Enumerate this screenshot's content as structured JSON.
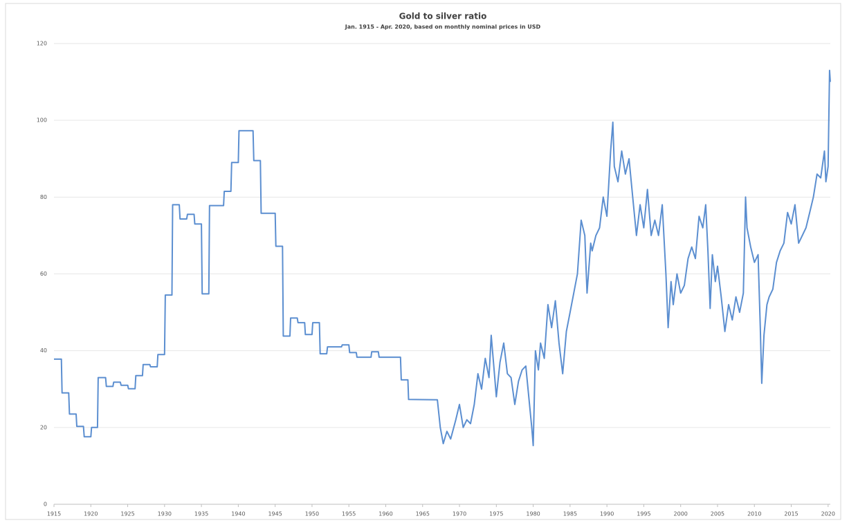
{
  "chart_data": {
    "type": "line",
    "title": "Gold to silver ratio",
    "subtitle": "Jan. 1915 - Apr. 2020, based on monthly nominal prices in USD",
    "color": "#5b8ed0",
    "grid": true,
    "xlim": [
      1915,
      2020.3
    ],
    "ylim": [
      0,
      120
    ],
    "xticks": [
      1915,
      1920,
      1925,
      1930,
      1935,
      1940,
      1945,
      1950,
      1955,
      1960,
      1965,
      1970,
      1975,
      1980,
      1985,
      1990,
      1995,
      2000,
      2005,
      2010,
      2015,
      2020
    ],
    "yticks": [
      0,
      20,
      40,
      60,
      80,
      100,
      120
    ],
    "x": [
      1915,
      1916,
      1916.1,
      1917,
      1917.1,
      1918,
      1918.1,
      1919,
      1919.1,
      1920,
      1920.1,
      1920.9,
      1921,
      1922,
      1922.1,
      1923,
      1923.1,
      1924,
      1924.1,
      1925,
      1925.1,
      1926,
      1926.1,
      1927,
      1927.1,
      1928,
      1928.1,
      1929,
      1929.1,
      1930,
      1930.1,
      1931,
      1931.1,
      1932,
      1932.1,
      1933,
      1933.1,
      1934,
      1934.1,
      1935,
      1935.1,
      1936,
      1936.1,
      1938,
      1938.1,
      1939,
      1939.1,
      1940,
      1940.1,
      1942,
      1942.1,
      1943,
      1943.1,
      1945,
      1945.1,
      1946,
      1946.1,
      1947,
      1947.1,
      1948,
      1948.1,
      1949,
      1949.1,
      1950,
      1950.1,
      1951,
      1951.1,
      1952,
      1952.1,
      1954,
      1954.1,
      1955,
      1955.1,
      1956,
      1956.1,
      1958,
      1958.1,
      1959,
      1959.1,
      1962,
      1962.1,
      1963,
      1963.1,
      1967,
      1967.4,
      1967.8,
      1968.3,
      1968.8,
      1969.5,
      1970,
      1970.5,
      1971,
      1971.5,
      1972,
      1972.5,
      1973,
      1973.5,
      1974,
      1974.3,
      1974.7,
      1975,
      1975.5,
      1976,
      1976.5,
      1977,
      1977.5,
      1978,
      1978.5,
      1979,
      1979.4,
      1979.8,
      1980,
      1980.3,
      1980.7,
      1981,
      1981.5,
      1982,
      1982.5,
      1983,
      1983.5,
      1984,
      1984.5,
      1985,
      1985.5,
      1986,
      1986.5,
      1987,
      1987.3,
      1987.8,
      1988,
      1988.5,
      1989,
      1989.5,
      1990,
      1990.5,
      1990.8,
      1991,
      1991.5,
      1992,
      1992.5,
      1993,
      1993.5,
      1994,
      1994.5,
      1995,
      1995.5,
      1996,
      1996.5,
      1997,
      1997.5,
      1998,
      1998.3,
      1998.7,
      1999,
      1999.5,
      2000,
      2000.5,
      2001,
      2001.5,
      2002,
      2002.5,
      2003,
      2003.4,
      2003.7,
      2004,
      2004.3,
      2004.7,
      2005,
      2005.5,
      2006,
      2006.5,
      2007,
      2007.5,
      2008,
      2008.5,
      2008.8,
      2009,
      2009.5,
      2010,
      2010.5,
      2010.8,
      2011,
      2011.3,
      2011.7,
      2012,
      2012.5,
      2013,
      2013.5,
      2014,
      2014.5,
      2015,
      2015.5,
      2016,
      2016.5,
      2017,
      2017.5,
      2018,
      2018.5,
      2019,
      2019.5,
      2019.7,
      2020,
      2020.2,
      2020.3
    ],
    "values": [
      37.8,
      37.8,
      29,
      29,
      23.5,
      23.5,
      20.3,
      20.3,
      17.6,
      17.6,
      20,
      20,
      33,
      33,
      30.7,
      30.7,
      31.8,
      31.8,
      31,
      31,
      30.1,
      30.1,
      33.5,
      33.5,
      36.4,
      36.4,
      35.8,
      35.8,
      39,
      39,
      54.5,
      54.5,
      78,
      78,
      74.3,
      74.3,
      75.5,
      75.5,
      73,
      73,
      54.8,
      54.8,
      77.8,
      77.8,
      81.5,
      81.5,
      89,
      89,
      97.3,
      97.3,
      89.5,
      89.5,
      75.8,
      75.8,
      67.2,
      67.2,
      43.8,
      43.8,
      48.5,
      48.5,
      47.3,
      47.3,
      44.2,
      44.2,
      47.3,
      47.3,
      39.2,
      39.2,
      41,
      41,
      41.5,
      41.5,
      39.5,
      39.5,
      38.3,
      38.3,
      39.7,
      39.7,
      38.3,
      38.3,
      32.4,
      32.4,
      27.3,
      27.2,
      20,
      15.8,
      19,
      17,
      22,
      26,
      20,
      22,
      21,
      26,
      34,
      30,
      38,
      33,
      44,
      35,
      28,
      37,
      42,
      34,
      33,
      26,
      32,
      35,
      36,
      28,
      20,
      15.3,
      40,
      35,
      42,
      38,
      52,
      46,
      53,
      42,
      34,
      45,
      50,
      55,
      60,
      74,
      70,
      55,
      68,
      66,
      70,
      72,
      80,
      75,
      92,
      99.5,
      88,
      84,
      92,
      86,
      90,
      80,
      70,
      78,
      72,
      82,
      70,
      74,
      70,
      78,
      60,
      46,
      58,
      52,
      60,
      55,
      57,
      64,
      67,
      64,
      75,
      72,
      78,
      66,
      51,
      65,
      58,
      62,
      54,
      45,
      52,
      48,
      54,
      50,
      55,
      80,
      72,
      67,
      63,
      65,
      46,
      31.5,
      44,
      52,
      54,
      56,
      63,
      66,
      68,
      76,
      73,
      78,
      68,
      70,
      72,
      76,
      80,
      86,
      85,
      92,
      84,
      88,
      113,
      110
    ]
  }
}
